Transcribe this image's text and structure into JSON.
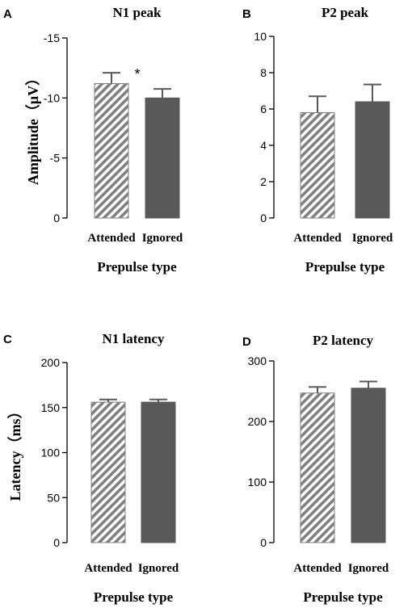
{
  "colors": {
    "solid_bar": "#595959",
    "hatch_bar": "#808080",
    "axis": "#000000"
  },
  "chart_data": [
    {
      "panel": "A",
      "type": "bar",
      "title": "N1 peak",
      "xlabel": "Prepulse type",
      "ylabel": "Amplitude（μV）",
      "categories": [
        "Attended",
        "Ignored"
      ],
      "styles": [
        "hatched",
        "solid"
      ],
      "values": [
        -11.2,
        -10.0
      ],
      "errors": [
        0.9,
        0.75
      ],
      "ylim": [
        0,
        -15
      ],
      "yticks": [
        0,
        -5,
        -10,
        -15
      ],
      "ytick_labels": [
        "0",
        "-5",
        "-10",
        "-15"
      ],
      "annotation": "*"
    },
    {
      "panel": "B",
      "type": "bar",
      "title": "P2 peak",
      "xlabel": "Prepulse type",
      "ylabel": "",
      "categories": [
        "Attended",
        "Ignored"
      ],
      "styles": [
        "hatched",
        "solid"
      ],
      "values": [
        5.8,
        6.4
      ],
      "errors": [
        0.9,
        0.95
      ],
      "ylim": [
        0,
        10
      ],
      "yticks": [
        0,
        2,
        4,
        6,
        8,
        10
      ],
      "ytick_labels": [
        "0",
        "2",
        "4",
        "6",
        "8",
        "10"
      ],
      "annotation": ""
    },
    {
      "panel": "C",
      "type": "bar",
      "title": "N1 latency",
      "xlabel": "Prepulse type",
      "ylabel": "Latency（ms）",
      "categories": [
        "Attended",
        "Ignored"
      ],
      "styles": [
        "hatched",
        "solid"
      ],
      "values": [
        156,
        156
      ],
      "errors": [
        3,
        3
      ],
      "ylim": [
        0,
        200
      ],
      "yticks": [
        0,
        50,
        100,
        150,
        200
      ],
      "ytick_labels": [
        "0",
        "50",
        "100",
        "150",
        "200"
      ],
      "annotation": ""
    },
    {
      "panel": "D",
      "type": "bar",
      "title": "P2 latency",
      "xlabel": "Prepulse type",
      "ylabel": "",
      "categories": [
        "Attended",
        "Ignored"
      ],
      "styles": [
        "hatched",
        "solid"
      ],
      "values": [
        247,
        255
      ],
      "errors": [
        10,
        11
      ],
      "ylim": [
        0,
        300
      ],
      "yticks": [
        0,
        100,
        200,
        300
      ],
      "ytick_labels": [
        "0",
        "100",
        "200",
        "300"
      ],
      "annotation": ""
    }
  ]
}
